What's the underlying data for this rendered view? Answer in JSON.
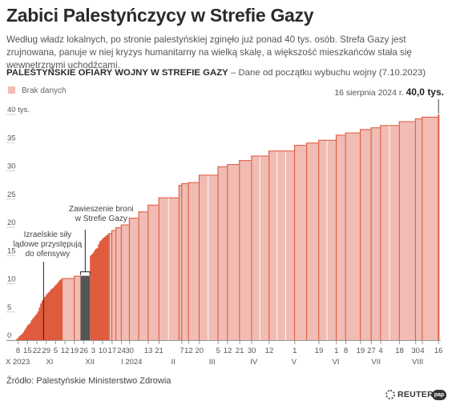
{
  "title": "Zabici Palestyńczycy w Strefie Gazy",
  "subtitle": "Według władz lokalnych, po stronie palestyńskiej zginęło już ponad 40 tys. osób. Strefa Gazy jest zrujnowana, panuje w niej kryzys humanitarny na wielką skalę, a większość mieszkańców stała się wewnętrznymi uchodźcami.",
  "chart_heading": {
    "bold": "PALESTYŃSKIE OFIARY WOJNY W STREFIE GAZY",
    "rest": " – Dane od początku wybuchu wojny (7.10.2023)"
  },
  "legend": {
    "no_data": "Brak danych"
  },
  "source": "Źródło: Palestyńskie Ministerstwo Zdrowia",
  "brand": {
    "reuters": "REUTERS",
    "pap": "pap"
  },
  "colors": {
    "data": "#e05a3c",
    "no_data": "#f0bcb4",
    "ceasefire": "#555555",
    "axis": "#999999"
  },
  "chart_data": {
    "type": "bar",
    "ylim": [
      0,
      40
    ],
    "grid": false,
    "legend_position": "top-left",
    "y_ticks": [
      {
        "value": 0,
        "label": "0"
      },
      {
        "value": 5,
        "label": "5"
      },
      {
        "value": 10,
        "label": "10"
      },
      {
        "value": 15,
        "label": "15"
      },
      {
        "value": 20,
        "label": "20"
      },
      {
        "value": 25,
        "label": "25"
      },
      {
        "value": 30,
        "label": "30"
      },
      {
        "value": 35,
        "label": "35"
      },
      {
        "value": 40,
        "label": "40 tys."
      }
    ],
    "x_range": [
      "2023-10-07",
      "2024-08-16"
    ],
    "x_ticks": [
      {
        "date": "2023-10-08",
        "label": "8"
      },
      {
        "date": "2023-10-15",
        "label": "15"
      },
      {
        "date": "2023-10-22",
        "label": "22"
      },
      {
        "date": "2023-10-29",
        "label": "29"
      },
      {
        "date": "2023-11-05",
        "label": "5"
      },
      {
        "date": "2023-11-12",
        "label": "12"
      },
      {
        "date": "2023-11-19",
        "label": "19"
      },
      {
        "date": "2023-11-26",
        "label": "26"
      },
      {
        "date": "2023-12-03",
        "label": "3"
      },
      {
        "date": "2023-12-10",
        "label": "10"
      },
      {
        "date": "2023-12-17",
        "label": "17"
      },
      {
        "date": "2023-12-24",
        "label": "24"
      },
      {
        "date": "2023-12-30",
        "label": "30"
      },
      {
        "date": "2024-01-13",
        "label": "13"
      },
      {
        "date": "2024-01-21",
        "label": "21"
      },
      {
        "date": "2024-02-07",
        "label": "7"
      },
      {
        "date": "2024-02-12",
        "label": "12"
      },
      {
        "date": "2024-02-20",
        "label": "20"
      },
      {
        "date": "2024-03-05",
        "label": "5"
      },
      {
        "date": "2024-03-12",
        "label": "12"
      },
      {
        "date": "2024-03-21",
        "label": "21"
      },
      {
        "date": "2024-03-30",
        "label": "30"
      },
      {
        "date": "2024-04-12",
        "label": "12"
      },
      {
        "date": "2024-05-01",
        "label": "1"
      },
      {
        "date": "2024-05-19",
        "label": "19"
      },
      {
        "date": "2024-06-01",
        "label": "1"
      },
      {
        "date": "2024-06-08",
        "label": "8"
      },
      {
        "date": "2024-06-19",
        "label": "19"
      },
      {
        "date": "2024-06-27",
        "label": "27"
      },
      {
        "date": "2024-07-04",
        "label": "4"
      },
      {
        "date": "2024-07-18",
        "label": "18"
      },
      {
        "date": "2024-07-30",
        "label": "30"
      },
      {
        "date": "2024-08-04",
        "label": "4"
      },
      {
        "date": "2024-08-16",
        "label": "16"
      }
    ],
    "x_group_labels": [
      {
        "date": "2023-10-07",
        "label": "X 2023"
      },
      {
        "date": "2023-11-01",
        "label": "XI"
      },
      {
        "date": "2023-12-01",
        "label": "XII"
      },
      {
        "date": "2024-01-01",
        "label": "I 2024"
      },
      {
        "date": "2024-02-01",
        "label": "II"
      },
      {
        "date": "2024-03-01",
        "label": "III"
      },
      {
        "date": "2024-04-01",
        "label": "IV"
      },
      {
        "date": "2024-05-01",
        "label": "V"
      },
      {
        "date": "2024-06-01",
        "label": "VI"
      },
      {
        "date": "2024-07-01",
        "label": "VII"
      },
      {
        "date": "2024-08-01",
        "label": "VIII"
      }
    ],
    "series": [
      {
        "name": "Dane",
        "points": [
          [
            "2023-10-07",
            0.2
          ],
          [
            "2023-10-08",
            0.4
          ],
          [
            "2023-10-09",
            0.7
          ],
          [
            "2023-10-10",
            0.9
          ],
          [
            "2023-10-11",
            1.1
          ],
          [
            "2023-10-12",
            1.4
          ],
          [
            "2023-10-13",
            1.8
          ],
          [
            "2023-10-14",
            2.2
          ],
          [
            "2023-10-15",
            2.6
          ],
          [
            "2023-10-16",
            2.8
          ],
          [
            "2023-10-17",
            3.0
          ],
          [
            "2023-10-18",
            3.5
          ],
          [
            "2023-10-19",
            3.8
          ],
          [
            "2023-10-20",
            4.1
          ],
          [
            "2023-10-21",
            4.4
          ],
          [
            "2023-10-22",
            4.7
          ],
          [
            "2023-10-23",
            5.1
          ],
          [
            "2023-10-24",
            5.8
          ],
          [
            "2023-10-25",
            6.5
          ],
          [
            "2023-10-26",
            7.0
          ],
          [
            "2023-10-27",
            7.3
          ],
          [
            "2023-10-28",
            7.7
          ],
          [
            "2023-10-29",
            8.0
          ],
          [
            "2023-10-30",
            8.3
          ],
          [
            "2023-10-31",
            8.5
          ],
          [
            "2023-11-01",
            8.8
          ],
          [
            "2023-11-02",
            9.1
          ],
          [
            "2023-11-03",
            9.2
          ],
          [
            "2023-11-04",
            9.5
          ],
          [
            "2023-11-05",
            9.8
          ],
          [
            "2023-11-06",
            10.0
          ],
          [
            "2023-11-07",
            10.3
          ],
          [
            "2023-11-08",
            10.6
          ],
          [
            "2023-11-09",
            10.8
          ],
          [
            "2023-11-10",
            11.0
          ],
          [
            "2023-11-19",
            11.4
          ],
          [
            "2023-12-01",
            15.0
          ],
          [
            "2023-12-02",
            15.2
          ],
          [
            "2023-12-03",
            15.5
          ],
          [
            "2023-12-04",
            15.9
          ],
          [
            "2023-12-05",
            16.2
          ],
          [
            "2023-12-06",
            16.3
          ],
          [
            "2023-12-07",
            17.0
          ],
          [
            "2023-12-08",
            17.5
          ],
          [
            "2023-12-09",
            17.7
          ],
          [
            "2023-12-10",
            18.0
          ],
          [
            "2023-12-11",
            18.2
          ],
          [
            "2023-12-12",
            18.4
          ],
          [
            "2023-12-13",
            18.6
          ],
          [
            "2023-12-14",
            18.8
          ],
          [
            "2023-12-15",
            19.0
          ],
          [
            "2023-12-17",
            19.5
          ],
          [
            "2023-12-20",
            20.0
          ],
          [
            "2023-12-24",
            20.5
          ],
          [
            "2023-12-30",
            21.7
          ],
          [
            "2024-01-06",
            22.8
          ],
          [
            "2024-01-13",
            24.0
          ],
          [
            "2024-01-21",
            25.3
          ],
          [
            "2024-02-05",
            27.5
          ],
          [
            "2024-02-07",
            27.8
          ],
          [
            "2024-02-12",
            28.0
          ],
          [
            "2024-02-20",
            29.3
          ],
          [
            "2024-03-05",
            30.8
          ],
          [
            "2024-03-12",
            31.2
          ],
          [
            "2024-03-21",
            31.9
          ],
          [
            "2024-03-30",
            32.7
          ],
          [
            "2024-04-12",
            33.6
          ],
          [
            "2024-05-01",
            34.6
          ],
          [
            "2024-05-10",
            35.0
          ],
          [
            "2024-05-19",
            35.5
          ],
          [
            "2024-06-01",
            36.4
          ],
          [
            "2024-06-08",
            36.8
          ],
          [
            "2024-06-19",
            37.4
          ],
          [
            "2024-06-27",
            37.7
          ],
          [
            "2024-07-04",
            38.1
          ],
          [
            "2024-07-18",
            38.8
          ],
          [
            "2024-07-30",
            39.3
          ],
          [
            "2024-08-04",
            39.6
          ],
          [
            "2024-08-16",
            40.0
          ]
        ]
      }
    ],
    "ceasefire": {
      "start": "2023-11-24",
      "end": "2023-11-30",
      "value": 11.4
    },
    "annotations": [
      {
        "id": "ground",
        "date": "2023-10-27",
        "lines": [
          "Izraelskie siły",
          "lądowe przystępują",
          "do ofensywy"
        ]
      },
      {
        "id": "ceasefire",
        "date": "2023-11-27",
        "lines": [
          "Zawieszenie broni",
          "w Strefie Gazy"
        ]
      }
    ],
    "last_value_label": {
      "prefix": "16 sierpnia 2024 r.",
      "value": "40,0 tys."
    }
  }
}
